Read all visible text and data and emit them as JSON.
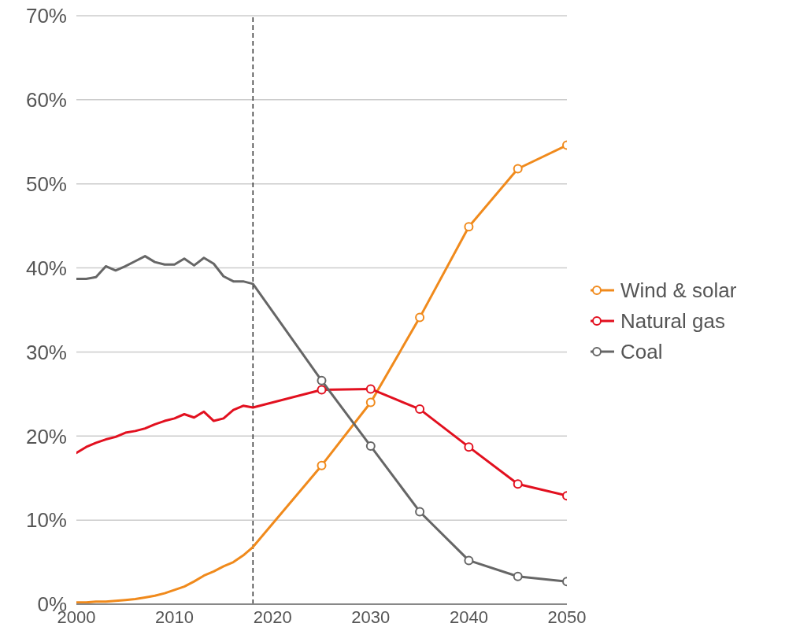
{
  "chart_data": {
    "type": "line",
    "xlim": [
      2000,
      2050
    ],
    "xticks": [
      2000,
      2010,
      2020,
      2030,
      2040,
      2050
    ],
    "ylim": [
      0,
      70
    ],
    "yticks": [
      {
        "value": 0,
        "label": "0%"
      },
      {
        "value": 10,
        "label": "10%"
      },
      {
        "value": 20,
        "label": "20%"
      },
      {
        "value": 30,
        "label": "30%"
      },
      {
        "value": 40,
        "label": "40%"
      },
      {
        "value": 50,
        "label": "50%"
      },
      {
        "value": 60,
        "label": "60%"
      },
      {
        "value": 70,
        "label": "70%"
      }
    ],
    "grid": "y",
    "legend": "right",
    "marker": "circle",
    "line_style": "solid",
    "ref_lines": [
      {
        "axis": "x",
        "value": 2018,
        "color": "#333333",
        "line_style": "dashed"
      }
    ],
    "series": [
      {
        "color": "#f08a1c",
        "marker": "none",
        "x": [
          2000,
          2001,
          2002,
          2003,
          2004,
          2005,
          2006,
          2007,
          2008,
          2009,
          2010,
          2011,
          2012,
          2013,
          2014,
          2015,
          2016,
          2017,
          2018,
          2025
        ],
        "values": [
          0.2,
          0.2,
          0.3,
          0.3,
          0.4,
          0.5,
          0.6,
          0.8,
          1.0,
          1.3,
          1.7,
          2.1,
          2.7,
          3.4,
          3.9,
          4.5,
          5.0,
          5.8,
          6.8,
          16.5
        ]
      },
      {
        "color": "#e2101f",
        "marker": "none",
        "x": [
          2000,
          2001,
          2002,
          2003,
          2004,
          2005,
          2006,
          2007,
          2008,
          2009,
          2010,
          2011,
          2012,
          2013,
          2014,
          2015,
          2016,
          2017,
          2018,
          2025
        ],
        "values": [
          18.0,
          18.7,
          19.2,
          19.6,
          19.9,
          20.4,
          20.6,
          20.9,
          21.4,
          21.8,
          22.1,
          22.6,
          22.2,
          22.9,
          21.8,
          22.1,
          23.1,
          23.6,
          23.4,
          25.5
        ]
      },
      {
        "color": "#666666",
        "marker": "none",
        "x": [
          2000,
          2001,
          2002,
          2003,
          2004,
          2005,
          2006,
          2007,
          2008,
          2009,
          2010,
          2011,
          2012,
          2013,
          2014,
          2015,
          2016,
          2017,
          2018,
          2025
        ],
        "values": [
          38.7,
          38.7,
          38.9,
          40.2,
          39.7,
          40.2,
          40.8,
          41.4,
          40.7,
          40.4,
          40.4,
          41.1,
          40.3,
          41.2,
          40.5,
          39.0,
          38.4,
          38.4,
          38.1,
          26.6
        ]
      },
      {
        "name": "Wind & solar",
        "color": "#f08a1c",
        "x": [
          2025,
          2030,
          2035,
          2040,
          2045,
          2050
        ],
        "values": [
          16.5,
          24.0,
          34.1,
          44.9,
          51.8,
          54.6
        ]
      },
      {
        "name": "Natural gas",
        "color": "#e2101f",
        "x": [
          2025,
          2030,
          2035,
          2040,
          2045,
          2050
        ],
        "values": [
          25.5,
          25.6,
          23.2,
          18.7,
          14.3,
          12.9
        ]
      },
      {
        "name": "Coal",
        "color": "#666666",
        "x": [
          2025,
          2030,
          2035,
          2040,
          2045,
          2050
        ],
        "values": [
          26.6,
          18.8,
          11.0,
          5.2,
          3.3,
          2.7
        ]
      }
    ]
  }
}
